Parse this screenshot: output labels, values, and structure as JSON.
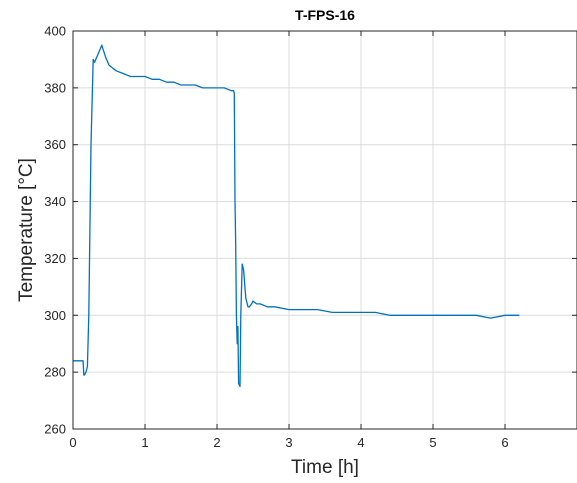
{
  "chart_data": {
    "type": "line",
    "title": "T-FPS-16",
    "xlabel": "Time [h]",
    "ylabel": "Temperature [°C]",
    "xlim": [
      0,
      7
    ],
    "ylim": [
      260,
      400
    ],
    "xticks": [
      0,
      1,
      2,
      3,
      4,
      5,
      6
    ],
    "xtick_labels": [
      "0",
      "1",
      "2",
      "3",
      "4",
      "5",
      "6"
    ],
    "yticks": [
      260,
      280,
      300,
      320,
      340,
      360,
      380,
      400
    ],
    "ytick_labels": [
      "260",
      "280",
      "300",
      "320",
      "340",
      "360",
      "380",
      "400"
    ],
    "grid": true,
    "legend": "none",
    "line_color": "#0072BD",
    "series": [
      {
        "values_note": "",
        "x": [
          0.0,
          0.05,
          0.1,
          0.14,
          0.15,
          0.16,
          0.18,
          0.2,
          0.22,
          0.25,
          0.28,
          0.3,
          0.35,
          0.4,
          0.45,
          0.5,
          0.55,
          0.6,
          0.7,
          0.8,
          0.9,
          1.0,
          1.1,
          1.2,
          1.3,
          1.4,
          1.5,
          1.6,
          1.7,
          1.8,
          1.9,
          2.0,
          2.1,
          2.2,
          2.23,
          2.24,
          2.25,
          2.26,
          2.27,
          2.28,
          2.29,
          2.3,
          2.32,
          2.33,
          2.35,
          2.37,
          2.4,
          2.43,
          2.45,
          2.48,
          2.5,
          2.55,
          2.6,
          2.7,
          2.8,
          3.0,
          3.2,
          3.4,
          3.6,
          3.8,
          4.0,
          4.2,
          4.4,
          4.6,
          4.8,
          5.0,
          5.2,
          5.4,
          5.6,
          5.8,
          6.0,
          6.1,
          6.2
        ],
        "y": [
          284,
          284,
          284,
          284,
          279,
          279,
          280,
          282,
          300,
          360,
          390,
          389,
          392,
          395,
          391,
          388,
          387,
          386,
          385,
          384,
          384,
          384,
          383,
          383,
          382,
          382,
          381,
          381,
          381,
          380,
          380,
          380,
          380,
          379,
          379,
          378,
          340,
          325,
          300,
          290,
          296,
          276,
          275,
          300,
          318,
          316,
          306,
          303,
          303,
          304,
          305,
          304,
          304,
          303,
          303,
          302,
          302,
          302,
          301,
          301,
          301,
          301,
          300,
          300,
          300,
          300,
          300,
          300,
          300,
          299,
          300,
          300,
          300
        ]
      }
    ]
  }
}
